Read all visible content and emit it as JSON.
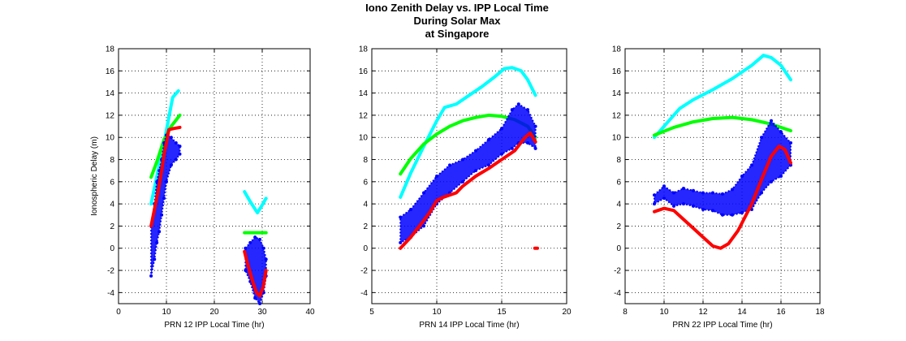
{
  "figure": {
    "title_lines": [
      "Iono Zenith Delay vs. IPP Local Time",
      "During Solar Max",
      "at Singapore"
    ]
  },
  "colors": {
    "blue": "#0000ff",
    "red": "#ff0000",
    "green": "#00ff00",
    "cyan": "#00ffff",
    "grid": "#000000",
    "axes": "#000000"
  },
  "chart_data": [
    {
      "type": "scatter",
      "xlabel": "PRN 12 IPP Local Time (hr)",
      "ylabel": "Ionospheric Delay (m)",
      "xlim": [
        0,
        40
      ],
      "ylim": [
        -5,
        18
      ],
      "xticks": [
        0,
        10,
        20,
        30,
        40
      ],
      "yticks": [
        -4,
        -2,
        0,
        2,
        4,
        6,
        8,
        10,
        12,
        14,
        16,
        18
      ],
      "grid": true,
      "series": [
        {
          "color": "cyan",
          "segments": [
            [
              [
                6.8,
                4.0
              ],
              [
                8.0,
                6.5
              ],
              [
                9.5,
                9.5
              ],
              [
                10.6,
                12.0
              ],
              [
                11.3,
                13.6
              ],
              [
                12.5,
                14.2
              ]
            ],
            [
              [
                26.3,
                5.1
              ],
              [
                27.5,
                4.2
              ],
              [
                29.0,
                3.2
              ],
              [
                30.0,
                3.9
              ],
              [
                30.8,
                4.5
              ]
            ]
          ]
        },
        {
          "color": "green",
          "segments": [
            [
              [
                6.8,
                6.4
              ],
              [
                8.0,
                7.8
              ],
              [
                9.5,
                9.8
              ],
              [
                11.0,
                11.0
              ],
              [
                12.8,
                12.0
              ]
            ],
            [
              [
                26.3,
                1.4
              ],
              [
                28.5,
                1.4
              ],
              [
                30.8,
                1.4
              ]
            ]
          ]
        },
        {
          "color": "blue",
          "band": true,
          "segments": [
            [
              [
                6.8,
                -2.5,
                2.0
              ],
              [
                7.5,
                -1.0,
                4.0
              ],
              [
                8.0,
                0.5,
                6.0
              ],
              [
                8.5,
                1.5,
                7.0
              ],
              [
                9.0,
                3.0,
                8.0
              ],
              [
                9.5,
                4.5,
                9.5
              ],
              [
                10.0,
                6.0,
                10.2
              ],
              [
                11.0,
                7.5,
                10.0
              ],
              [
                12.0,
                8.0,
                9.5
              ],
              [
                12.8,
                8.5,
                9.2
              ]
            ],
            [
              [
                26.5,
                -2.0,
                0.0
              ],
              [
                27.5,
                -3.0,
                0.5
              ],
              [
                28.5,
                -4.5,
                1.0
              ],
              [
                29.5,
                -5.0,
                0.8
              ],
              [
                30.3,
                -4.0,
                0.0
              ],
              [
                30.8,
                -2.5,
                -1.0
              ]
            ]
          ]
        },
        {
          "color": "red",
          "segments": [
            [
              [
                6.8,
                2.0
              ],
              [
                7.5,
                3.5
              ],
              [
                8.2,
                5.0
              ],
              [
                9.0,
                7.0
              ],
              [
                9.5,
                8.5
              ],
              [
                10.0,
                9.5
              ],
              [
                10.5,
                10.7
              ],
              [
                11.5,
                10.8
              ],
              [
                12.8,
                10.9
              ]
            ],
            [
              [
                26.3,
                -0.3
              ],
              [
                27.0,
                -1.5
              ],
              [
                28.0,
                -3.0
              ],
              [
                28.8,
                -4.0
              ],
              [
                29.5,
                -4.3
              ],
              [
                30.2,
                -3.5
              ],
              [
                30.8,
                -2.0
              ]
            ]
          ]
        }
      ]
    },
    {
      "type": "scatter",
      "xlabel": "PRN 14 IPP Local Time (hr)",
      "ylabel": "",
      "xlim": [
        5,
        20
      ],
      "ylim": [
        -5,
        18
      ],
      "xticks": [
        5,
        10,
        15,
        20
      ],
      "yticks": [
        -4,
        -2,
        0,
        2,
        4,
        6,
        8,
        10,
        12,
        14,
        16,
        18
      ],
      "grid": true,
      "series": [
        {
          "color": "cyan",
          "segments": [
            [
              [
                7.2,
                4.6
              ],
              [
                8.0,
                6.8
              ],
              [
                9.0,
                9.2
              ],
              [
                10.0,
                11.5
              ],
              [
                10.6,
                12.7
              ],
              [
                11.5,
                13.0
              ],
              [
                12.5,
                13.8
              ],
              [
                13.5,
                14.6
              ],
              [
                14.5,
                15.5
              ],
              [
                15.2,
                16.2
              ],
              [
                15.8,
                16.3
              ],
              [
                16.5,
                16.0
              ],
              [
                17.0,
                15.2
              ],
              [
                17.6,
                13.8
              ]
            ]
          ]
        },
        {
          "color": "green",
          "segments": [
            [
              [
                7.2,
                6.7
              ],
              [
                8.0,
                8.1
              ],
              [
                9.0,
                9.4
              ],
              [
                10.0,
                10.3
              ],
              [
                11.0,
                11.0
              ],
              [
                12.0,
                11.5
              ],
              [
                13.0,
                11.8
              ],
              [
                14.0,
                12.0
              ],
              [
                15.0,
                11.9
              ],
              [
                16.0,
                11.6
              ],
              [
                17.0,
                11.0
              ],
              [
                17.6,
                10.0
              ]
            ]
          ]
        },
        {
          "color": "blue",
          "band": true,
          "segments": [
            [
              [
                7.2,
                0.5,
                2.8
              ],
              [
                8.0,
                1.0,
                3.5
              ],
              [
                9.0,
                2.0,
                5.0
              ],
              [
                10.0,
                4.0,
                6.5
              ],
              [
                11.0,
                5.0,
                7.5
              ],
              [
                12.0,
                6.0,
                8.0
              ],
              [
                13.0,
                7.0,
                8.8
              ],
              [
                14.0,
                7.5,
                9.8
              ],
              [
                15.0,
                8.5,
                10.8
              ],
              [
                15.8,
                9.0,
                12.5
              ],
              [
                16.3,
                9.5,
                13.0
              ],
              [
                17.0,
                9.5,
                12.5
              ],
              [
                17.6,
                9.0,
                11.0
              ]
            ]
          ]
        },
        {
          "color": "red",
          "segments": [
            [
              [
                7.2,
                0.0
              ],
              [
                8.0,
                1.0
              ],
              [
                9.0,
                2.5
              ],
              [
                9.5,
                3.3
              ],
              [
                10.0,
                4.3
              ],
              [
                10.5,
                4.6
              ],
              [
                11.0,
                4.8
              ],
              [
                11.5,
                5.0
              ],
              [
                12.0,
                5.6
              ],
              [
                13.0,
                6.5
              ],
              [
                14.0,
                7.2
              ],
              [
                15.0,
                8.0
              ],
              [
                16.0,
                8.8
              ],
              [
                16.8,
                10.0
              ],
              [
                17.2,
                10.4
              ],
              [
                17.6,
                9.6
              ]
            ],
            [
              [
                17.55,
                0.0
              ],
              [
                17.75,
                0.0
              ]
            ]
          ]
        }
      ]
    },
    {
      "type": "scatter",
      "xlabel": "PRN 22 IPP Local Time (hr)",
      "ylabel": "",
      "xlim": [
        8,
        18
      ],
      "ylim": [
        -5,
        18
      ],
      "xticks": [
        8,
        10,
        12,
        14,
        16,
        18
      ],
      "yticks": [
        -4,
        -2,
        0,
        2,
        4,
        6,
        8,
        10,
        12,
        14,
        16,
        18
      ],
      "grid": true,
      "series": [
        {
          "color": "cyan",
          "segments": [
            [
              [
                9.5,
                10.0
              ],
              [
                10.0,
                11.0
              ],
              [
                10.8,
                12.6
              ],
              [
                11.5,
                13.4
              ],
              [
                12.5,
                14.3
              ],
              [
                13.5,
                15.3
              ],
              [
                14.5,
                16.5
              ],
              [
                15.1,
                17.4
              ],
              [
                15.5,
                17.2
              ],
              [
                16.0,
                16.5
              ],
              [
                16.5,
                15.2
              ]
            ]
          ]
        },
        {
          "color": "green",
          "segments": [
            [
              [
                9.5,
                10.2
              ],
              [
                10.5,
                10.9
              ],
              [
                11.5,
                11.4
              ],
              [
                12.5,
                11.7
              ],
              [
                13.5,
                11.8
              ],
              [
                14.5,
                11.6
              ],
              [
                15.5,
                11.2
              ],
              [
                16.5,
                10.6
              ]
            ]
          ]
        },
        {
          "color": "blue",
          "band": true,
          "segments": [
            [
              [
                9.5,
                4.0,
                4.8
              ],
              [
                10.0,
                4.5,
                5.6
              ],
              [
                10.5,
                3.8,
                5.0
              ],
              [
                11.0,
                4.0,
                5.4
              ],
              [
                11.5,
                3.8,
                5.2
              ],
              [
                12.0,
                3.5,
                5.0
              ],
              [
                12.5,
                3.4,
                5.0
              ],
              [
                13.0,
                3.0,
                4.9
              ],
              [
                13.5,
                3.0,
                5.3
              ],
              [
                14.0,
                3.2,
                6.5
              ],
              [
                14.5,
                3.5,
                7.5
              ],
              [
                15.0,
                5.0,
                10.0
              ],
              [
                15.5,
                6.0,
                11.5
              ],
              [
                16.0,
                6.5,
                10.5
              ],
              [
                16.5,
                7.5,
                9.5
              ]
            ]
          ]
        },
        {
          "color": "red",
          "segments": [
            [
              [
                9.5,
                3.3
              ],
              [
                10.0,
                3.6
              ],
              [
                10.5,
                3.4
              ],
              [
                11.0,
                2.6
              ],
              [
                11.5,
                1.8
              ],
              [
                12.0,
                1.0
              ],
              [
                12.5,
                0.2
              ],
              [
                12.9,
                0.0
              ],
              [
                13.3,
                0.4
              ],
              [
                13.8,
                1.6
              ],
              [
                14.5,
                4.0
              ],
              [
                15.0,
                6.2
              ],
              [
                15.5,
                8.3
              ],
              [
                15.9,
                9.2
              ],
              [
                16.2,
                8.9
              ],
              [
                16.5,
                7.7
              ]
            ]
          ]
        }
      ]
    }
  ]
}
